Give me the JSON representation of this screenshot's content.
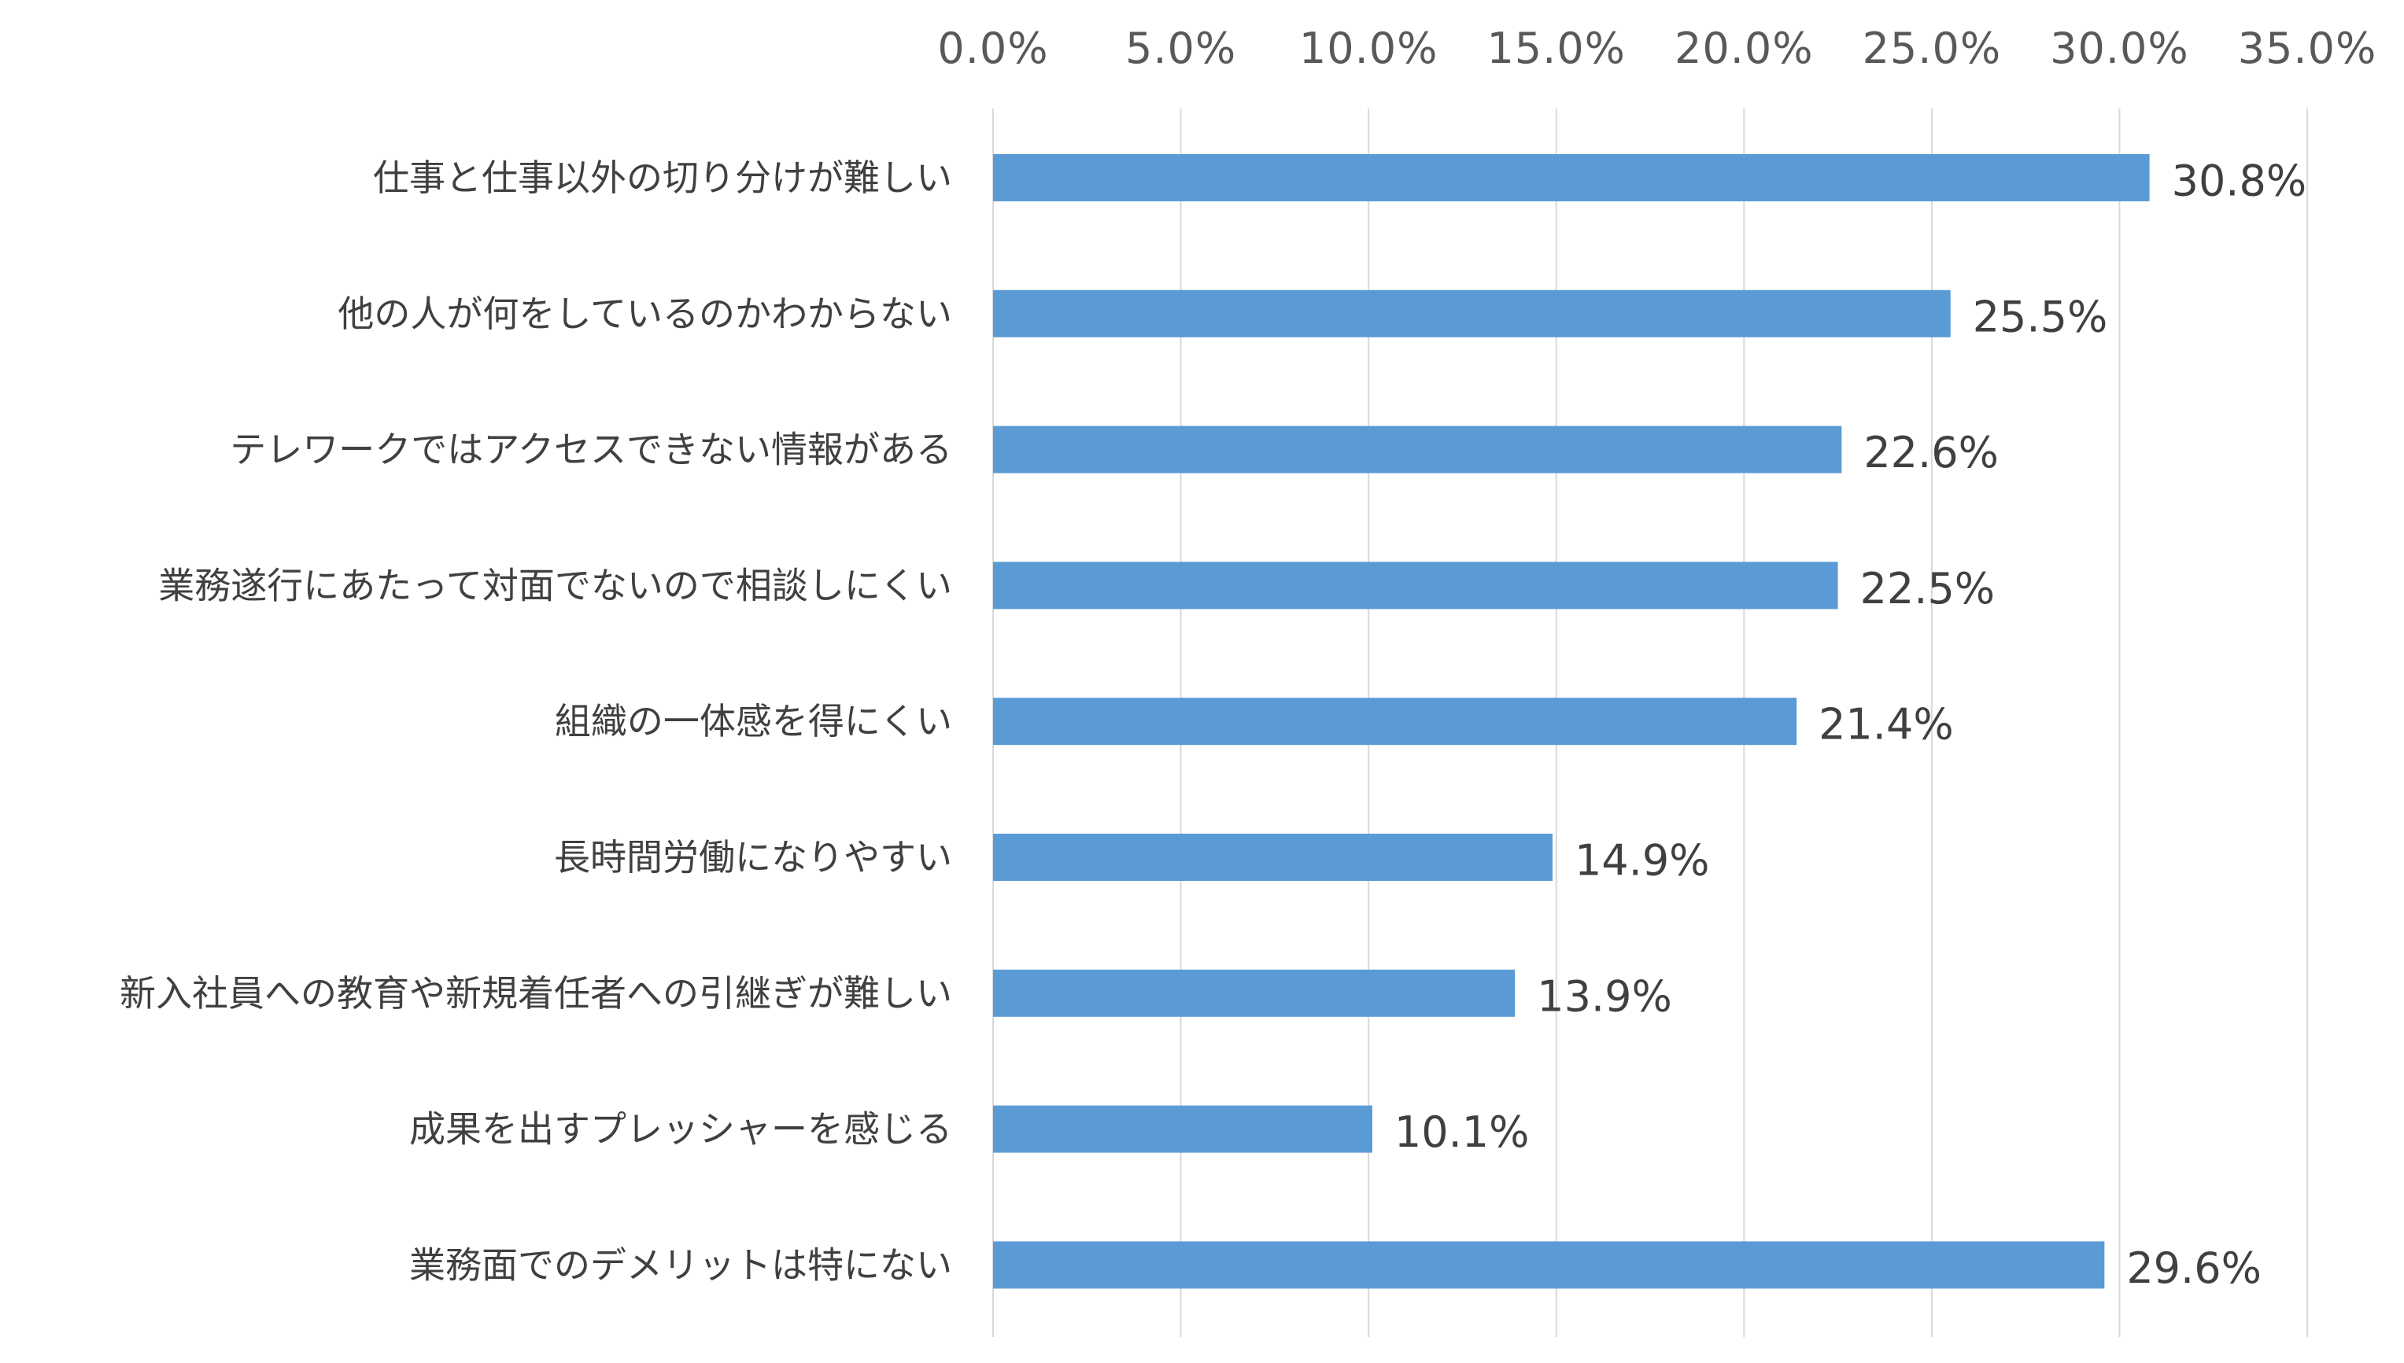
{
  "chart_data": {
    "type": "bar",
    "orientation": "horizontal",
    "categories": [
      "仕事と仕事以外の切り分けが難しい",
      "他の人が何をしているのかわからない",
      "テレワークではアクセスできない情報がある",
      "業務遂行にあたって対面でないので相談しにくい",
      "組織の一体感を得にくい",
      "長時間労働になりやすい",
      "新入社員への教育や新規着任者への引継ぎが難しい",
      "成果を出すプレッシャーを感じる",
      "業務面でのデメリットは特にない"
    ],
    "values": [
      30.8,
      25.5,
      22.6,
      22.5,
      21.4,
      14.9,
      13.9,
      10.1,
      29.6
    ],
    "data_labels": [
      "30.8%",
      "25.5%",
      "22.6%",
      "22.5%",
      "21.4%",
      "14.9%",
      "13.9%",
      "10.1%",
      "29.6%"
    ],
    "xlim": [
      0,
      35
    ],
    "x_ticks": [
      0,
      5,
      10,
      15,
      20,
      25,
      30,
      35
    ],
    "x_tick_labels": [
      "0.0%",
      "5.0%",
      "10.0%",
      "15.0%",
      "20.0%",
      "25.0%",
      "30.0%",
      "35.0%"
    ],
    "x_axis_position": "top",
    "grid": true,
    "legend": false,
    "title": "",
    "xlabel": "",
    "ylabel": "",
    "colors": {
      "bar": "#5B9BD5",
      "grid": "#D9D9D9",
      "tick_text": "#595959",
      "label_text": "#404040"
    }
  }
}
